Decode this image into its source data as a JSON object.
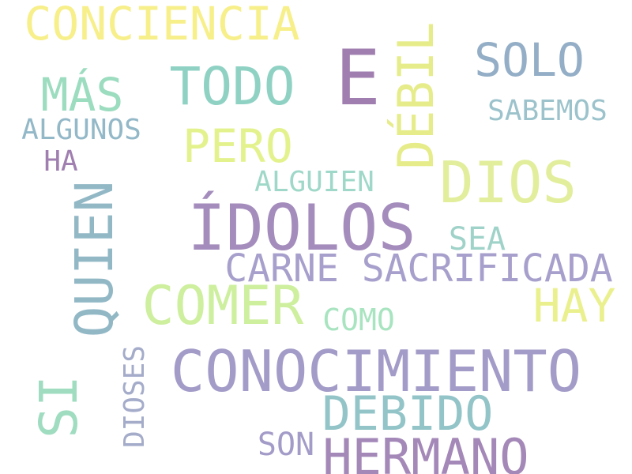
{
  "words": [
    {
      "text": "CONCIENCIA",
      "color": "#f7ef8a"
    },
    {
      "text": "E",
      "color": "#a07fb0"
    },
    {
      "text": "DÉBIL",
      "color": "#e6ec8a"
    },
    {
      "text": "SOLO",
      "color": "#93aec6"
    },
    {
      "text": "TODO",
      "color": "#8fd2c4"
    },
    {
      "text": "MÁS",
      "color": "#9cdcbf"
    },
    {
      "text": "SABEMOS",
      "color": "#9cc3cc"
    },
    {
      "text": "ALGUNOS",
      "color": "#93b8c8"
    },
    {
      "text": "PERO",
      "color": "#e4f28e"
    },
    {
      "text": "HA",
      "color": "#a07fb0"
    },
    {
      "text": "ALGUIEN",
      "color": "#9fd8c8"
    },
    {
      "text": "DIOS",
      "color": "#e2ee9c"
    },
    {
      "text": "QUIEN",
      "color": "#92b8c6"
    },
    {
      "text": "ÍDOLOS",
      "color": "#a48cbc"
    },
    {
      "text": "SEA",
      "color": "#9fd2c8"
    },
    {
      "text": "CARNE SACRIFICADA",
      "color": "#a8a0cc"
    },
    {
      "text": "COMER",
      "color": "#cdef9e"
    },
    {
      "text": "HAY",
      "color": "#eaf08e"
    },
    {
      "text": "COMO",
      "color": "#a8e4c0"
    },
    {
      "text": "CONOCIMIENTO",
      "color": "#a49cc8"
    },
    {
      "text": "SI",
      "color": "#9fdcc0"
    },
    {
      "text": "DIOSES",
      "color": "#a4acca"
    },
    {
      "text": "DEBIDO",
      "color": "#92c4c8"
    },
    {
      "text": "SON",
      "color": "#a49cc8"
    },
    {
      "text": "HERMANO",
      "color": "#a488b8"
    }
  ]
}
